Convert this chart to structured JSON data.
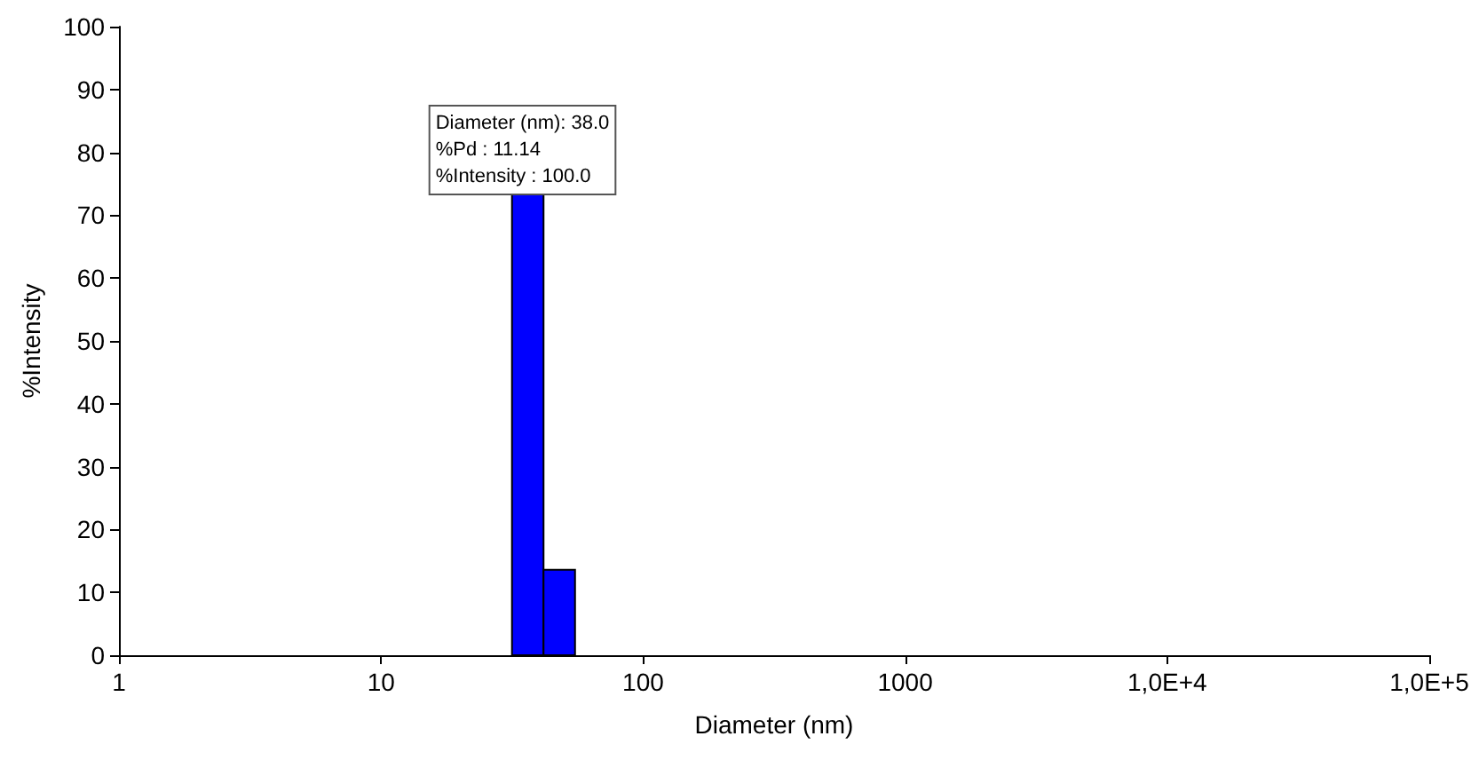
{
  "chart_data": {
    "type": "histogram",
    "xlabel": "Diameter (nm)",
    "ylabel": "%Intensity",
    "bins": [
      31.6,
      41.7,
      55
    ],
    "values": [
      74,
      13.6
    ],
    "color": "#0000ff",
    "log": "x",
    "xlim": [
      1,
      100000
    ],
    "xticks": [
      1,
      10,
      100,
      1000,
      {
        "value": 10000,
        "label": "1,0E+4"
      },
      {
        "value": 100000,
        "label": "1,0E+5"
      }
    ],
    "ylim": [
      0,
      100
    ],
    "yticks": [
      0,
      10,
      20,
      30,
      40,
      50,
      60,
      70,
      80,
      90,
      100
    ],
    "grid": false,
    "annotations": [
      "Diameter (nm): 38.0\n%Pd : 11.14\n%Intensity : 100.0"
    ]
  }
}
